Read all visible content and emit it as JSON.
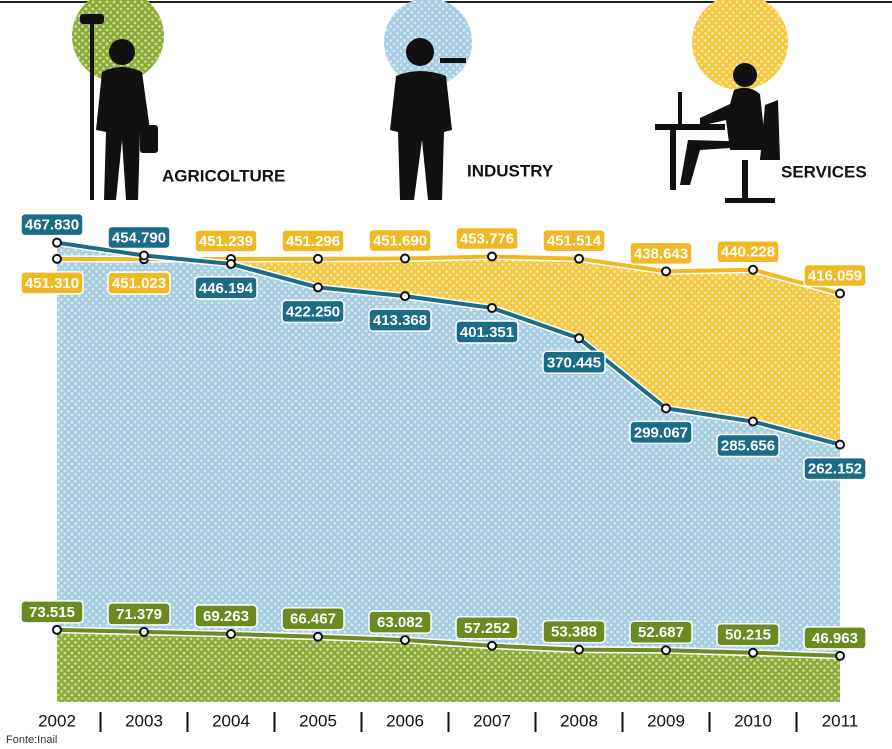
{
  "chart_data": {
    "type": "area",
    "categories": [
      "2002",
      "2003",
      "2004",
      "2005",
      "2006",
      "2007",
      "2008",
      "2009",
      "2010",
      "2011"
    ],
    "ylim": [
      0,
      715000
    ],
    "series": [
      {
        "name": "AGRICOLTURE",
        "color": "#6b8a22",
        "area_color": "#8cad35",
        "values": [
          73515,
          71379,
          69263,
          66467,
          63082,
          57252,
          53388,
          52687,
          50215,
          46963
        ],
        "value_labels": [
          "73.515",
          "71.379",
          "69.263",
          "66.467",
          "63.082",
          "57.252",
          "53.388",
          "52.687",
          "50.215",
          "46.963"
        ]
      },
      {
        "name": "INDUSTRY",
        "color": "#1b6c86",
        "area_color": "#a6cde0",
        "values": [
          467830,
          454790,
          446194,
          422250,
          413368,
          401351,
          370445,
          299067,
          285656,
          262152
        ],
        "value_labels": [
          "467.830",
          "454.790",
          "446.194",
          "422.250",
          "413.368",
          "401.351",
          "370.445",
          "299.067",
          "285.656",
          "262.152"
        ]
      },
      {
        "name": "SERVICES",
        "color": "#f0b923",
        "area_color": "#f4c840",
        "values": [
          451310,
          451023,
          451239,
          451296,
          451690,
          453776,
          451514,
          438643,
          440228,
          416059
        ],
        "value_labels": [
          "451.310",
          "451.023",
          "451.239",
          "451.296",
          "451.690",
          "453.776",
          "451.514",
          "438.643",
          "440.228",
          "416.059"
        ]
      }
    ],
    "source": "Fonte:Inail"
  }
}
